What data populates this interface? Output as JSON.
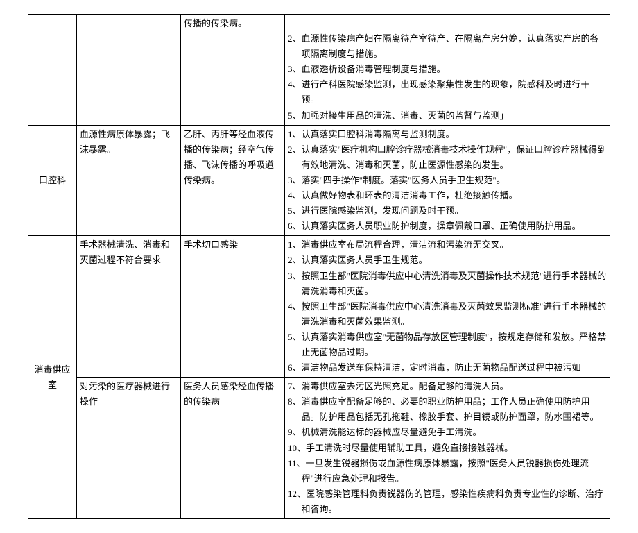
{
  "rows": [
    {
      "col1": "",
      "col2": "",
      "col3": "传播的传染病。",
      "col4": [
        "",
        "2、血源性传染病产妇在隔离待产室待产、在隔离产房分娩，认真落实产房的各项隔离制度与措施。",
        "3、血液透析设备消毒管理制度与措施。",
        "4、进行产科医院感染监测，出现感染聚集性发生的现象，院感科及时进行干预。",
        "5、加强对接生用品的清洗、消毒、灭菌的监督与监测」"
      ]
    },
    {
      "col1": "口腔科",
      "col2": "血源性病原体暴露；飞沫暴露。",
      "col3": "乙肝、丙肝等经血液传播的传染病；经空气传播、飞沫传播的呼吸道传染病。",
      "col4": [
        "1、认真落实口腔科消毒隔离与监测制度。",
        "2、认真落实\"医疗机构口腔诊疗器械消毒技术操作规程\"，保证口腔诊疗器械得到有效地清洗、消毒和灭菌，防止医源性感染的发生。",
        "3、落实\"四手操作\"制度。落实\"医务人员手卫生规范\"。",
        "4、认真做好物表和环表的清洁消毒工作，杜绝接触传播。",
        "5、进行医院感染监测，发现问题及时干预。",
        "6、认真落实医务人员职业防护制度，操章佩戴口罩、正确使用防护用品。"
      ]
    },
    {
      "col1": "消毒供应室",
      "rowspan1": 2,
      "col2": "手术器械清洗、消毒和灭菌过程不符合要求",
      "col3": "手术切口感染",
      "col4": [
        "1、消毒供应室布局流程合理，清洁流和污染流无交叉。",
        "2、认真落实医务人员手卫生规范。",
        "3、按照卫生部\"医院消毒供应中心清洗消毒及灭菌操作技术规范\"进行手术器械的清洗消毒和灭菌。",
        "4、按照卫生部\"医院消毒供应中心清洗消毒及灭菌效果监测标准\"进行手术器械的清洗消毒和灭菌效果监测。",
        "5、认真落实消毒供应室\"无菌物品存放区管理制度\"，按规定存储和发放。严格禁止无菌物品过期。",
        "6、清洁物品发送车保持清洁，定时消毒，防止无菌物品配送过程中被污如"
      ]
    },
    {
      "col2": "对污染的医疗器械进行操作",
      "col3": "医务人员感染经血传播的传染病",
      "col4": [
        "7、消毒供应室去污区光照充足。配备足够的清洗人员。",
        "8、消毒供应室配备足够的、必要的职业防护用品；工作人员正确使用防护用品。防护用品包括无孔拖鞋、橡胶手套、护目镜或防护面罩，防水围裙等。",
        "9、机械清洗能达标的器械应尽量避免手工清洗。",
        "10、手工清洗时尽量使用辅助工具，避免直接接触器械。",
        "11、一旦发生锐器损伤或血源性病原体暴露，按照\"医务人员锐器损伤处理流程\"进行应急处理和报告。",
        "12、医院感染管理科负责锐器伤的管理，感染性疾病科负责专业性的诊断、治疗和咨询。"
      ]
    }
  ]
}
